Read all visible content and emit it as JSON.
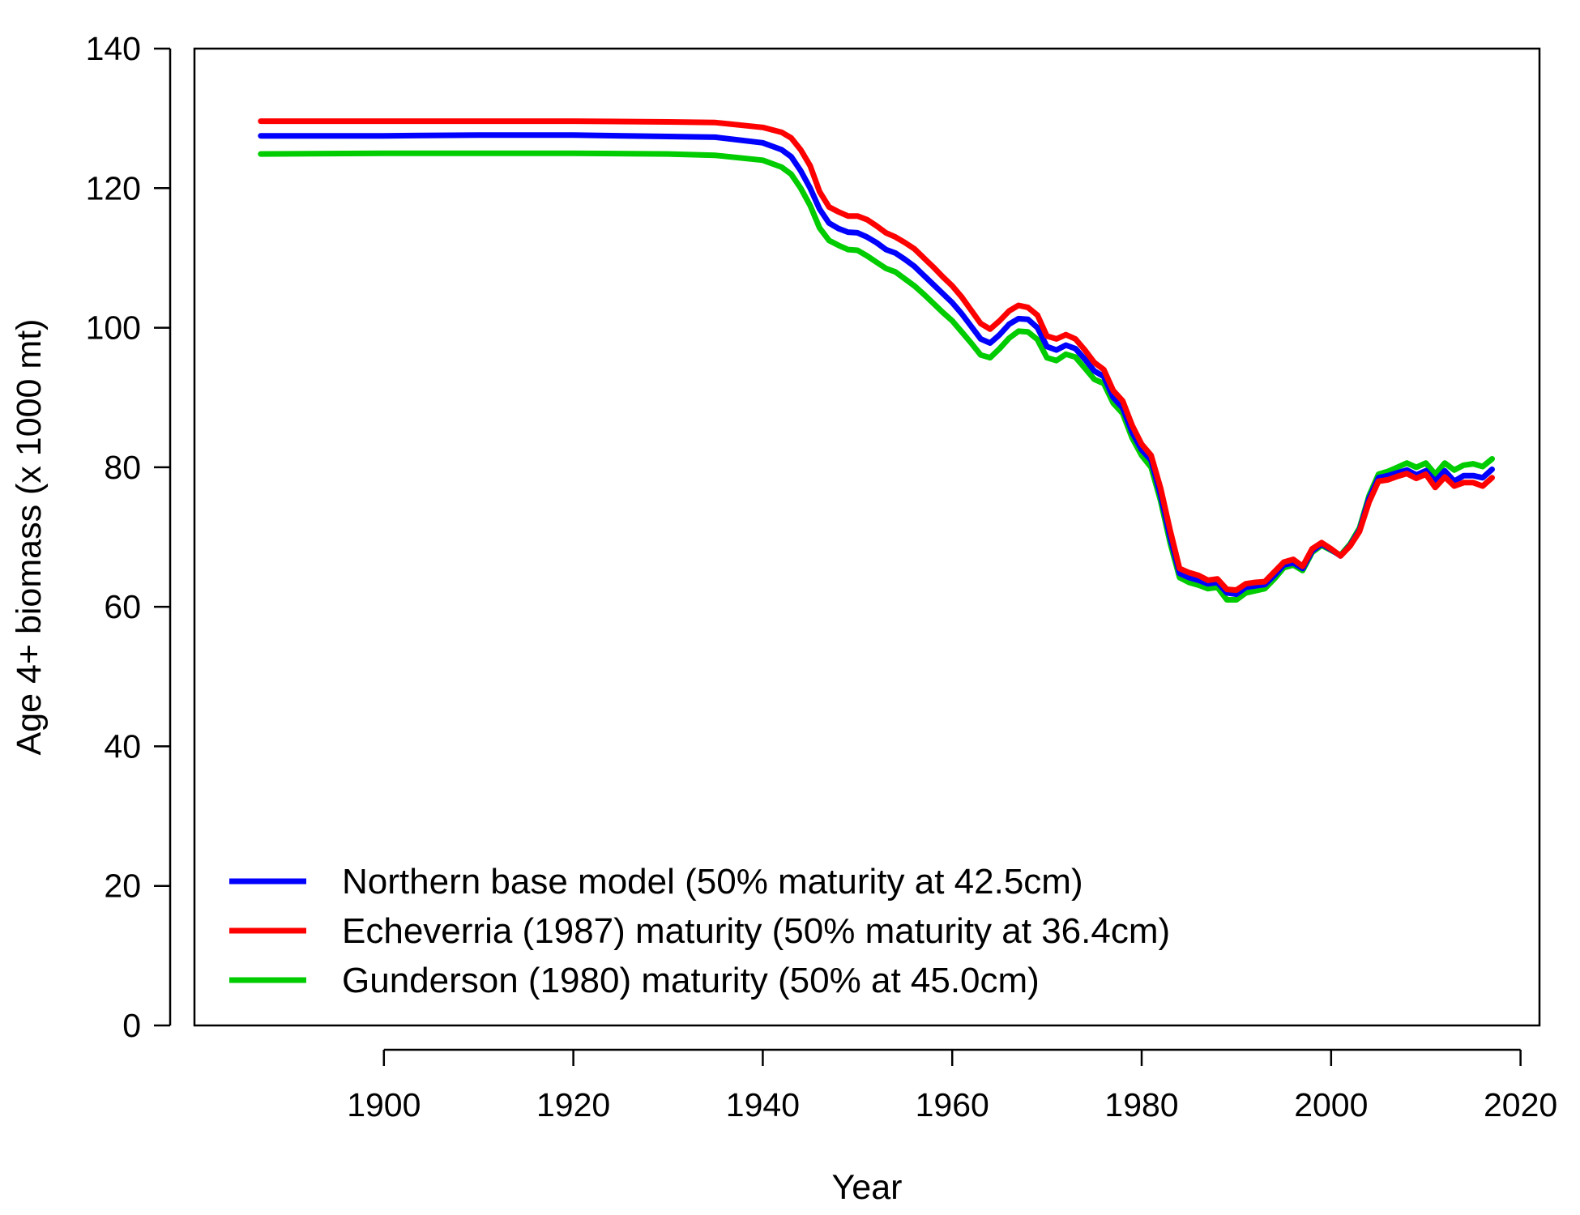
{
  "chart_data": {
    "type": "line",
    "xlabel": "Year",
    "ylabel": "Age 4+ biomass (x 1000 mt)",
    "xlim": [
      1880,
      2022
    ],
    "ylim": [
      0,
      140
    ],
    "x_ticks": [
      "1900",
      "1920",
      "1940",
      "1960",
      "1980",
      "2000",
      "2020"
    ],
    "y_ticks": [
      "0",
      "20",
      "40",
      "60",
      "80",
      "100",
      "120",
      "140"
    ],
    "grid": false,
    "legend_position": "bottom-left",
    "series": [
      {
        "name": "Northern base model (50% maturity at 42.5cm)",
        "color": "#0000FF",
        "points": [
          [
            1887,
            127.5
          ],
          [
            1900,
            127.5
          ],
          [
            1910,
            127.6
          ],
          [
            1920,
            127.6
          ],
          [
            1930,
            127.4
          ],
          [
            1935,
            127.3
          ],
          [
            1940,
            126.5
          ],
          [
            1942,
            125.5
          ],
          [
            1943,
            124.5
          ],
          [
            1944,
            122.5
          ],
          [
            1945,
            120.0
          ],
          [
            1946,
            117.0
          ],
          [
            1947,
            115.0
          ],
          [
            1948,
            114.2
          ],
          [
            1949,
            113.7
          ],
          [
            1950,
            113.6
          ],
          [
            1951,
            113.0
          ],
          [
            1952,
            112.2
          ],
          [
            1953,
            111.2
          ],
          [
            1954,
            110.7
          ],
          [
            1955,
            109.8
          ],
          [
            1956,
            108.8
          ],
          [
            1957,
            107.5
          ],
          [
            1958,
            106.2
          ],
          [
            1959,
            104.9
          ],
          [
            1960,
            103.6
          ],
          [
            1961,
            102.0
          ],
          [
            1962,
            100.2
          ],
          [
            1963,
            98.4
          ],
          [
            1964,
            97.8
          ],
          [
            1965,
            99.0
          ],
          [
            1966,
            100.5
          ],
          [
            1967,
            101.3
          ],
          [
            1968,
            101.2
          ],
          [
            1969,
            100.0
          ],
          [
            1970,
            97.3
          ],
          [
            1971,
            96.8
          ],
          [
            1972,
            97.5
          ],
          [
            1973,
            97.0
          ],
          [
            1974,
            95.5
          ],
          [
            1975,
            93.8
          ],
          [
            1976,
            93.0
          ],
          [
            1977,
            90.0
          ],
          [
            1978,
            88.5
          ],
          [
            1979,
            85.0
          ],
          [
            1980,
            82.5
          ],
          [
            1981,
            81.0
          ],
          [
            1982,
            76.0
          ],
          [
            1983,
            70.0
          ],
          [
            1984,
            64.8
          ],
          [
            1985,
            64.2
          ],
          [
            1986,
            63.8
          ],
          [
            1987,
            63.3
          ],
          [
            1988,
            63.5
          ],
          [
            1989,
            62.0
          ],
          [
            1990,
            61.8
          ],
          [
            1991,
            62.8
          ],
          [
            1992,
            63.0
          ],
          [
            1993,
            63.2
          ],
          [
            1994,
            64.5
          ],
          [
            1995,
            66.0
          ],
          [
            1996,
            66.3
          ],
          [
            1997,
            65.5
          ],
          [
            1998,
            68.0
          ],
          [
            1999,
            69.0
          ],
          [
            2000,
            68.2
          ],
          [
            2001,
            67.3
          ],
          [
            2002,
            68.8
          ],
          [
            2003,
            71.0
          ],
          [
            2004,
            75.5
          ],
          [
            2005,
            78.5
          ],
          [
            2006,
            78.8
          ],
          [
            2007,
            79.2
          ],
          [
            2008,
            79.6
          ],
          [
            2009,
            78.9
          ],
          [
            2010,
            79.5
          ],
          [
            2011,
            78.0
          ],
          [
            2012,
            79.5
          ],
          [
            2013,
            78.0
          ],
          [
            2014,
            78.8
          ],
          [
            2015,
            78.8
          ],
          [
            2016,
            78.5
          ],
          [
            2017,
            79.7
          ]
        ]
      },
      {
        "name": "Echeverria (1987) maturity (50% maturity at 36.4cm)",
        "color": "#FF0000",
        "points": [
          [
            1887,
            129.6
          ],
          [
            1900,
            129.6
          ],
          [
            1910,
            129.6
          ],
          [
            1920,
            129.6
          ],
          [
            1930,
            129.5
          ],
          [
            1935,
            129.4
          ],
          [
            1940,
            128.7
          ],
          [
            1942,
            128.0
          ],
          [
            1943,
            127.2
          ],
          [
            1944,
            125.5
          ],
          [
            1945,
            123.2
          ],
          [
            1946,
            119.5
          ],
          [
            1947,
            117.3
          ],
          [
            1948,
            116.6
          ],
          [
            1949,
            116.0
          ],
          [
            1950,
            116.0
          ],
          [
            1951,
            115.5
          ],
          [
            1952,
            114.6
          ],
          [
            1953,
            113.6
          ],
          [
            1954,
            113.0
          ],
          [
            1955,
            112.2
          ],
          [
            1956,
            111.3
          ],
          [
            1957,
            110.0
          ],
          [
            1958,
            108.7
          ],
          [
            1959,
            107.3
          ],
          [
            1960,
            106.0
          ],
          [
            1961,
            104.4
          ],
          [
            1962,
            102.5
          ],
          [
            1963,
            100.6
          ],
          [
            1964,
            99.8
          ],
          [
            1965,
            101.0
          ],
          [
            1966,
            102.4
          ],
          [
            1967,
            103.2
          ],
          [
            1968,
            102.9
          ],
          [
            1969,
            101.8
          ],
          [
            1970,
            98.8
          ],
          [
            1971,
            98.4
          ],
          [
            1972,
            99.0
          ],
          [
            1973,
            98.4
          ],
          [
            1974,
            96.8
          ],
          [
            1975,
            95.0
          ],
          [
            1976,
            94.0
          ],
          [
            1977,
            91.0
          ],
          [
            1978,
            89.5
          ],
          [
            1979,
            86.0
          ],
          [
            1980,
            83.3
          ],
          [
            1981,
            81.7
          ],
          [
            1982,
            77.0
          ],
          [
            1983,
            71.0
          ],
          [
            1984,
            65.5
          ],
          [
            1985,
            64.9
          ],
          [
            1986,
            64.5
          ],
          [
            1987,
            63.8
          ],
          [
            1988,
            64.0
          ],
          [
            1989,
            62.5
          ],
          [
            1990,
            62.4
          ],
          [
            1991,
            63.3
          ],
          [
            1992,
            63.5
          ],
          [
            1993,
            63.6
          ],
          [
            1994,
            65.0
          ],
          [
            1995,
            66.4
          ],
          [
            1996,
            66.8
          ],
          [
            1997,
            65.8
          ],
          [
            1998,
            68.3
          ],
          [
            1999,
            69.2
          ],
          [
            2000,
            68.3
          ],
          [
            2001,
            67.3
          ],
          [
            2002,
            68.7
          ],
          [
            2003,
            70.8
          ],
          [
            2004,
            75.0
          ],
          [
            2005,
            78.0
          ],
          [
            2006,
            78.2
          ],
          [
            2007,
            78.7
          ],
          [
            2008,
            79.1
          ],
          [
            2009,
            78.4
          ],
          [
            2010,
            79.0
          ],
          [
            2011,
            77.1
          ],
          [
            2012,
            78.6
          ],
          [
            2013,
            77.3
          ],
          [
            2014,
            77.8
          ],
          [
            2015,
            77.8
          ],
          [
            2016,
            77.3
          ],
          [
            2017,
            78.5
          ]
        ]
      },
      {
        "name": "Gunderson (1980) maturity (50% at 45.0cm)",
        "color": "#00CC00",
        "points": [
          [
            1887,
            124.9
          ],
          [
            1900,
            125.0
          ],
          [
            1910,
            125.0
          ],
          [
            1920,
            125.0
          ],
          [
            1930,
            124.9
          ],
          [
            1935,
            124.7
          ],
          [
            1940,
            124.0
          ],
          [
            1942,
            123.0
          ],
          [
            1943,
            122.0
          ],
          [
            1944,
            120.0
          ],
          [
            1945,
            117.5
          ],
          [
            1946,
            114.3
          ],
          [
            1947,
            112.5
          ],
          [
            1948,
            111.8
          ],
          [
            1949,
            111.2
          ],
          [
            1950,
            111.1
          ],
          [
            1951,
            110.3
          ],
          [
            1952,
            109.4
          ],
          [
            1953,
            108.5
          ],
          [
            1954,
            108.0
          ],
          [
            1955,
            107.0
          ],
          [
            1956,
            106.0
          ],
          [
            1957,
            104.8
          ],
          [
            1958,
            103.5
          ],
          [
            1959,
            102.2
          ],
          [
            1960,
            101.0
          ],
          [
            1961,
            99.4
          ],
          [
            1962,
            97.8
          ],
          [
            1963,
            96.1
          ],
          [
            1964,
            95.7
          ],
          [
            1965,
            97.0
          ],
          [
            1966,
            98.5
          ],
          [
            1967,
            99.5
          ],
          [
            1968,
            99.4
          ],
          [
            1969,
            98.3
          ],
          [
            1970,
            95.7
          ],
          [
            1971,
            95.3
          ],
          [
            1972,
            96.2
          ],
          [
            1973,
            95.8
          ],
          [
            1974,
            94.2
          ],
          [
            1975,
            92.6
          ],
          [
            1976,
            92.0
          ],
          [
            1977,
            89.2
          ],
          [
            1978,
            87.7
          ],
          [
            1979,
            84.2
          ],
          [
            1980,
            81.7
          ],
          [
            1981,
            80.0
          ],
          [
            1982,
            75.2
          ],
          [
            1983,
            69.2
          ],
          [
            1984,
            64.2
          ],
          [
            1985,
            63.5
          ],
          [
            1986,
            63.1
          ],
          [
            1987,
            62.6
          ],
          [
            1988,
            62.8
          ],
          [
            1989,
            61.0
          ],
          [
            1990,
            61.0
          ],
          [
            1991,
            62.0
          ],
          [
            1992,
            62.3
          ],
          [
            1993,
            62.6
          ],
          [
            1994,
            64.0
          ],
          [
            1995,
            65.6
          ],
          [
            1996,
            66.0
          ],
          [
            1997,
            65.2
          ],
          [
            1998,
            67.8
          ],
          [
            1999,
            68.8
          ],
          [
            2000,
            68.1
          ],
          [
            2001,
            67.4
          ],
          [
            2002,
            69.0
          ],
          [
            2003,
            71.3
          ],
          [
            2004,
            75.9
          ],
          [
            2005,
            79.0
          ],
          [
            2006,
            79.4
          ],
          [
            2007,
            80.0
          ],
          [
            2008,
            80.6
          ],
          [
            2009,
            80.0
          ],
          [
            2010,
            80.6
          ],
          [
            2011,
            79.0
          ],
          [
            2012,
            80.6
          ],
          [
            2013,
            79.6
          ],
          [
            2014,
            80.3
          ],
          [
            2015,
            80.5
          ],
          [
            2016,
            80.1
          ],
          [
            2017,
            81.2
          ]
        ]
      }
    ]
  }
}
